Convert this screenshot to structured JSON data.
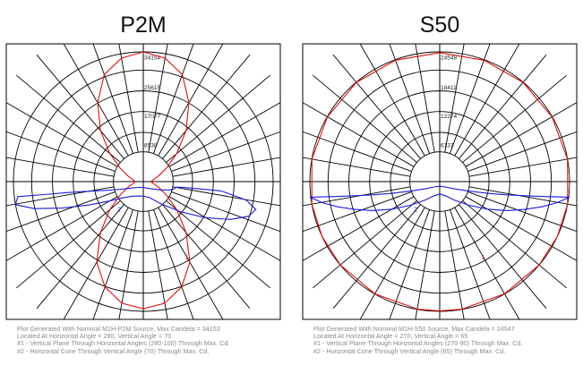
{
  "chart_data": [
    {
      "type": "polar",
      "title": "P2M",
      "ring_labels": [
        "34154",
        "25615",
        "17077",
        "8538"
      ],
      "rmax": 34154,
      "rings": [
        6830.8,
        13661.6,
        20492.4,
        27323.2,
        34154
      ],
      "colors": {
        "vertical": "#dd1111",
        "horizontal": "#1b1bd6",
        "grid": "#000000"
      },
      "series": [
        {
          "name": "#1",
          "color": "#dd1111",
          "points": [
            [
              -180,
              34154
            ],
            [
              -170,
              33000
            ],
            [
              -160,
              30000
            ],
            [
              -150,
              24000
            ],
            [
              -140,
              17500
            ],
            [
              -130,
              11500
            ],
            [
              -120,
              7000
            ],
            [
              -110,
              4200
            ],
            [
              -100,
              2700
            ],
            [
              -90,
              2200
            ],
            [
              -80,
              2600
            ],
            [
              -70,
              4200
            ],
            [
              -60,
              7000
            ],
            [
              -50,
              11500
            ],
            [
              -40,
              17500
            ],
            [
              -30,
              24500
            ],
            [
              -20,
              29500
            ],
            [
              -10,
              32500
            ],
            [
              0,
              33500
            ],
            [
              10,
              32500
            ],
            [
              20,
              29500
            ],
            [
              30,
              24500
            ],
            [
              40,
              17500
            ],
            [
              50,
              11500
            ],
            [
              60,
              7000
            ],
            [
              70,
              4200
            ],
            [
              80,
              2600
            ],
            [
              90,
              2000
            ],
            [
              100,
              2600
            ],
            [
              110,
              4200
            ],
            [
              120,
              7000
            ],
            [
              130,
              11500
            ],
            [
              140,
              17500
            ],
            [
              150,
              24000
            ],
            [
              160,
              30000
            ],
            [
              170,
              33000
            ],
            [
              180,
              34154
            ]
          ]
        },
        {
          "name": "#2",
          "color": "#1b1bd6",
          "points": [
            [
              0,
              8500
            ],
            [
              10,
              9500
            ],
            [
              20,
              13500
            ],
            [
              30,
              19500
            ],
            [
              40,
              25500
            ],
            [
              50,
              30000
            ],
            [
              60,
              32000
            ],
            [
              70,
              31500
            ],
            [
              80,
              27500
            ],
            [
              90,
              20500
            ],
            [
              100,
              14500
            ],
            [
              110,
              11000
            ],
            [
              120,
              10000
            ],
            [
              130,
              11000
            ],
            [
              140,
              12500
            ],
            [
              150,
              13500
            ],
            [
              160,
              13000
            ],
            [
              170,
              11000
            ],
            [
              180,
              9000
            ],
            [
              190,
              9000
            ],
            [
              200,
              10500
            ],
            [
              210,
              12500
            ],
            [
              220,
              14500
            ],
            [
              230,
              16000
            ],
            [
              240,
              18000
            ],
            [
              250,
              21000
            ],
            [
              260,
              26500
            ],
            [
              270,
              33000
            ],
            [
              280,
              34154
            ],
            [
              290,
              30500
            ],
            [
              300,
              24500
            ],
            [
              310,
              18500
            ],
            [
              320,
              13500
            ],
            [
              330,
              10500
            ],
            [
              340,
              9000
            ],
            [
              350,
              8500
            ]
          ]
        }
      ]
    },
    {
      "type": "polar",
      "title": "S50",
      "ring_labels": [
        "24548",
        "18411",
        "12274",
        "6137"
      ],
      "rmax": 24548,
      "rings": [
        4909.6,
        9819.2,
        14728.8,
        19638.4,
        24548
      ],
      "colors": {
        "vertical": "#dd1111",
        "horizontal": "#1b1bd6",
        "grid": "#000000"
      },
      "series": [
        {
          "name": "#1",
          "color": "#dd1111",
          "points": [
            [
              -180,
              24400
            ],
            [
              -160,
              24450
            ],
            [
              -140,
              24500
            ],
            [
              -120,
              24520
            ],
            [
              -100,
              24530
            ],
            [
              -80,
              24540
            ],
            [
              -65,
              24548
            ],
            [
              -50,
              24540
            ],
            [
              -30,
              24520
            ],
            [
              -10,
              24500
            ],
            [
              0,
              24480
            ],
            [
              10,
              24500
            ],
            [
              30,
              24520
            ],
            [
              50,
              24540
            ],
            [
              65,
              24548
            ],
            [
              80,
              24540
            ],
            [
              100,
              24530
            ],
            [
              120,
              24520
            ],
            [
              140,
              24500
            ],
            [
              160,
              24450
            ],
            [
              180,
              24400
            ]
          ]
        },
        {
          "name": "#2",
          "color": "#1b1bd6",
          "points": [
            [
              0,
              5200
            ],
            [
              10,
              6000
            ],
            [
              20,
              8200
            ],
            [
              30,
              11000
            ],
            [
              40,
              14000
            ],
            [
              50,
              16500
            ],
            [
              60,
              18500
            ],
            [
              70,
              20500
            ],
            [
              80,
              22500
            ],
            [
              90,
              24548
            ],
            [
              100,
              22500
            ],
            [
              110,
              20500
            ],
            [
              120,
              18500
            ],
            [
              130,
              16500
            ],
            [
              140,
              14000
            ],
            [
              150,
              11000
            ],
            [
              160,
              8200
            ],
            [
              170,
              6000
            ],
            [
              180,
              5200
            ],
            [
              190,
              6000
            ],
            [
              200,
              8200
            ],
            [
              210,
              11000
            ],
            [
              220,
              14000
            ],
            [
              230,
              16500
            ],
            [
              240,
              18500
            ],
            [
              250,
              20500
            ],
            [
              260,
              22500
            ],
            [
              270,
              24548
            ],
            [
              280,
              22500
            ],
            [
              290,
              20500
            ],
            [
              300,
              18500
            ],
            [
              310,
              16500
            ],
            [
              320,
              14000
            ],
            [
              330,
              11000
            ],
            [
              340,
              8200
            ],
            [
              350,
              6000
            ]
          ]
        }
      ]
    }
  ],
  "panels": [
    {
      "title": "P2M",
      "caption": [
        "Plot Generated With Nominal M1H-P2M Source, Max Candela = 34153",
        "Located At Horizontal Angle = 280, Vertical Angle = 70",
        "#1 - Vertical Plane Through Horizontal Angles (280-100) Through Max. Cd.",
        "#2 - Horizontal Cone Through Vertical Angle (70) Through Max. Cd."
      ],
      "marker_1": "1",
      "marker_2": "2"
    },
    {
      "title": "S50",
      "caption": [
        "Plot Generated With Nominal M1H-S50 Source, Max Candela = 24547",
        "Located At Horizontal Angle = 270, Vertical Angle = 65",
        "#1 - Vertical Plane Through Horizontal Angles (270-90) Through Max. Cd.",
        "#2 - Horizontal Cone Through Vertical Angle (65) Through Max. Cd."
      ],
      "marker_1": "1",
      "marker_2": "2"
    }
  ]
}
